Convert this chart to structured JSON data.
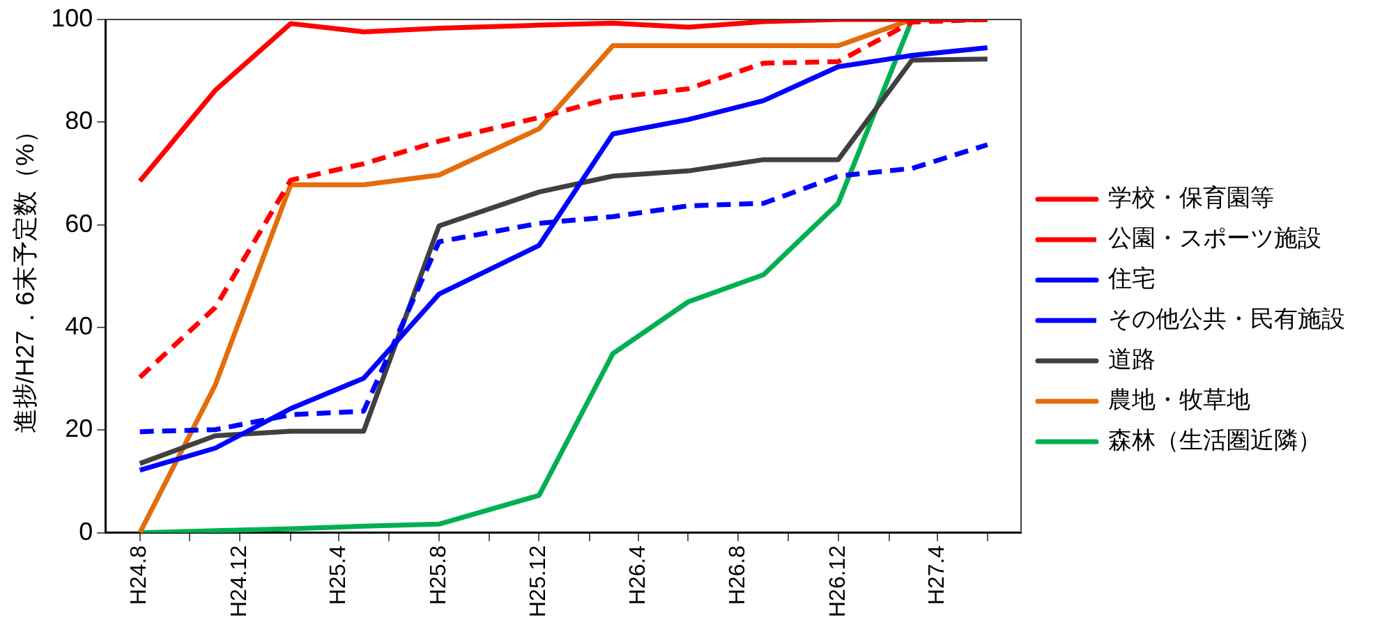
{
  "chart_data": {
    "type": "line",
    "ylabel": "進捗/H27．6末予定数（%）",
    "x": [
      "2012-08",
      "2012-11",
      "2013-02",
      "2013-05",
      "2013-08",
      "2013-12",
      "2014-03",
      "2014-06",
      "2014-09",
      "2014-12",
      "2015-03",
      "2015-06"
    ],
    "xlim": [
      "2012-06-20",
      "2015-07-12"
    ],
    "xticks": [
      {
        "value": "2012-08",
        "label": "H24.8"
      },
      {
        "value": "2012-10",
        "label": null
      },
      {
        "value": "2012-12",
        "label": "H24.12"
      },
      {
        "value": "2013-02",
        "label": null
      },
      {
        "value": "2013-04",
        "label": "H25.4"
      },
      {
        "value": "2013-06",
        "label": null
      },
      {
        "value": "2013-08",
        "label": "H25.8"
      },
      {
        "value": "2013-10",
        "label": null
      },
      {
        "value": "2013-12",
        "label": "H25.12"
      },
      {
        "value": "2014-02",
        "label": null
      },
      {
        "value": "2014-04",
        "label": "H26.4"
      },
      {
        "value": "2014-06",
        "label": null
      },
      {
        "value": "2014-08",
        "label": "H26.8"
      },
      {
        "value": "2014-10",
        "label": null
      },
      {
        "value": "2014-12",
        "label": "H26.12"
      },
      {
        "value": "2015-02",
        "label": null
      },
      {
        "value": "2015-04",
        "label": "H27.4"
      },
      {
        "value": "2015-06",
        "label": null
      }
    ],
    "ylim": [
      0,
      100
    ],
    "yticks": [
      0,
      20,
      40,
      60,
      80,
      100
    ],
    "grid": false,
    "legend": "right",
    "marker": "none",
    "series": [
      {
        "name": "学校・保育園等",
        "color": "#ff0000",
        "line_style": "solid",
        "values": [
          68.5,
          86.2,
          99.2,
          97.6,
          98.3,
          98.9,
          99.3,
          98.5,
          99.6,
          100,
          100,
          100
        ]
      },
      {
        "name": "公園・スポーツ施設",
        "color": "#ff0000",
        "line_style": "dashed",
        "values": [
          30.3,
          43.9,
          68.7,
          71.9,
          76.3,
          80.9,
          84.8,
          86.5,
          91.5,
          91.8,
          99.5,
          100
        ]
      },
      {
        "name": "住宅",
        "color": "#0000ff",
        "line_style": "solid",
        "values": [
          12.2,
          16.5,
          24.2,
          30.1,
          46.5,
          56.0,
          77.7,
          80.5,
          84.2,
          90.8,
          93.0,
          94.5
        ]
      },
      {
        "name": "その他公共・民有施設",
        "color": "#0000ff",
        "line_style": "dashed",
        "values": [
          19.7,
          20.1,
          23.0,
          23.7,
          56.7,
          60.3,
          61.6,
          63.7,
          64.2,
          69.5,
          71.0,
          75.6
        ]
      },
      {
        "name": "道路",
        "color": "#404040",
        "line_style": "solid",
        "values": [
          13.5,
          18.9,
          19.8,
          19.8,
          59.8,
          66.4,
          69.5,
          70.5,
          72.7,
          72.7,
          92.1,
          92.3
        ]
      },
      {
        "name": "農地・牧草地",
        "color": "#e46c0a",
        "line_style": "solid",
        "values": [
          0,
          28.8,
          67.8,
          67.8,
          69.7,
          78.7,
          94.9,
          94.9,
          94.9,
          94.9,
          100,
          100
        ]
      },
      {
        "name": "森林（生活圏近隣）",
        "color": "#00b050",
        "line_style": "solid",
        "values": [
          0,
          0.4,
          0.8,
          1.3,
          1.7,
          7.3,
          34.9,
          45.0,
          50.3,
          64.2,
          100,
          100
        ]
      }
    ]
  }
}
